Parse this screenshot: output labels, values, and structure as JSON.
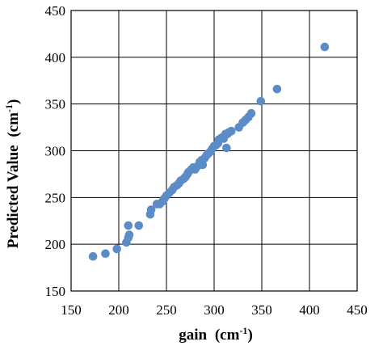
{
  "chart_data": {
    "type": "scatter",
    "title": "",
    "xlabel": "gain",
    "xlabel_unit": "(cm",
    "xlabel_unit_sup": "-1",
    "xlabel_unit_close": ")",
    "ylabel": "Predicted Value",
    "ylabel_unit": "(cm",
    "ylabel_unit_sup": "-1",
    "ylabel_unit_close": ")",
    "xlim": [
      150,
      450
    ],
    "ylim": [
      150,
      450
    ],
    "x_ticks": [
      150,
      200,
      250,
      300,
      350,
      400,
      450
    ],
    "y_ticks": [
      150,
      200,
      250,
      300,
      350,
      400,
      450
    ],
    "x_tick_labels": [
      "150",
      "200",
      "250",
      "300",
      "350",
      "400",
      "450"
    ],
    "y_tick_labels": [
      "150",
      "200",
      "250",
      "300",
      "350",
      "400",
      "450"
    ],
    "grid": true,
    "legend": "none",
    "marker_color": "#5b8cc8",
    "series": [
      {
        "points": [
          [
            173,
            187
          ],
          [
            186,
            190
          ],
          [
            198,
            195
          ],
          [
            208,
            202
          ],
          [
            210,
            207
          ],
          [
            211,
            210
          ],
          [
            210,
            220
          ],
          [
            221,
            220
          ],
          [
            233,
            232
          ],
          [
            234,
            237
          ],
          [
            240,
            243
          ],
          [
            243,
            243
          ],
          [
            246,
            246
          ],
          [
            248,
            249
          ],
          [
            250,
            252
          ],
          [
            253,
            255
          ],
          [
            256,
            258
          ],
          [
            258,
            261
          ],
          [
            261,
            263
          ],
          [
            263,
            265
          ],
          [
            265,
            268
          ],
          [
            268,
            270
          ],
          [
            270,
            272
          ],
          [
            272,
            275
          ],
          [
            273,
            277
          ],
          [
            276,
            280
          ],
          [
            278,
            282
          ],
          [
            280,
            280
          ],
          [
            282,
            283
          ],
          [
            285,
            288
          ],
          [
            287,
            290
          ],
          [
            288,
            285
          ],
          [
            290,
            292
          ],
          [
            292,
            295
          ],
          [
            294,
            297
          ],
          [
            296,
            299
          ],
          [
            298,
            302
          ],
          [
            300,
            305
          ],
          [
            302,
            306
          ],
          [
            304,
            308
          ],
          [
            305,
            312
          ],
          [
            308,
            314
          ],
          [
            310,
            313
          ],
          [
            312,
            318
          ],
          [
            314,
            318
          ],
          [
            316,
            320
          ],
          [
            318,
            321
          ],
          [
            313,
            303
          ],
          [
            326,
            325
          ],
          [
            330,
            330
          ],
          [
            333,
            333
          ],
          [
            336,
            336
          ],
          [
            339,
            340
          ],
          [
            349,
            353
          ],
          [
            366,
            366
          ],
          [
            416,
            411
          ]
        ]
      }
    ]
  }
}
